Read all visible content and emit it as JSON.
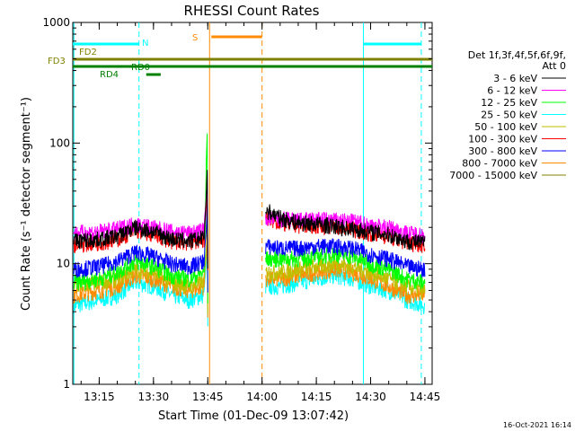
{
  "chart_data": {
    "type": "line",
    "title": "RHESSI Count Rates",
    "xlabel": "Start Time (01-Dec-09 13:07:42)",
    "ylabel": "Count Rate (s⁻¹ detector segment⁻¹)",
    "y_scale": "log",
    "ylim": [
      1,
      1000
    ],
    "xlim": [
      "13:07:42",
      "14:47:00"
    ],
    "x_ticks": [
      "13:15",
      "13:30",
      "13:45",
      "14:00",
      "14:15",
      "14:30",
      "14:45"
    ],
    "y_ticks": [
      "1",
      "10",
      "100",
      "1000"
    ],
    "timestamp": "16-Oct-2021 16:14",
    "legend": {
      "position": "right",
      "title_lines": [
        "Det 1f,3f,4f,5f,6f,9f,",
        "Att 0"
      ]
    },
    "series": [
      {
        "name": "3 - 6 keV",
        "color": "#000000",
        "values": [
          15.5,
          16,
          17,
          20,
          18.5,
          16,
          15.5,
          16.5,
          28,
          24,
          22,
          21.5,
          20.5,
          19.5,
          18.5,
          17.5,
          15.5,
          15
        ]
      },
      {
        "name": "6 - 12 keV",
        "color": "#ff00ff",
        "values": [
          18,
          18.5,
          19.5,
          21.5,
          20,
          18.5,
          18,
          19,
          24,
          23.5,
          23,
          23.5,
          23,
          22.5,
          21,
          20,
          18,
          17.5
        ]
      },
      {
        "name": "12 - 25 keV",
        "color": "#00ff00",
        "values": [
          7,
          7.5,
          8.5,
          10.5,
          9.5,
          8,
          7.5,
          8.5,
          11,
          11,
          11,
          11.5,
          12,
          11.5,
          10,
          9,
          7.5,
          7
        ]
      },
      {
        "name": "25 - 50 keV",
        "color": "#00ffff",
        "values": [
          4.5,
          5,
          5.5,
          7,
          6.5,
          5.5,
          5,
          5.5,
          6.5,
          6.5,
          7,
          7.5,
          8,
          7.5,
          6.5,
          6,
          5,
          4.5
        ]
      },
      {
        "name": "50 - 100 keV",
        "color": "#bfbf00",
        "values": [
          6.5,
          7,
          7.5,
          9,
          8.5,
          7,
          6.5,
          7,
          8.5,
          8.5,
          9,
          9.5,
          10,
          9.5,
          8.5,
          7.5,
          6.5,
          6
        ]
      },
      {
        "name": "100 - 300 keV",
        "color": "#ff0000",
        "values": [
          14.5,
          15,
          16,
          19,
          17.5,
          15.5,
          15,
          16,
          24,
          22,
          21,
          21,
          20.5,
          19.5,
          18,
          17,
          15,
          14.5
        ]
      },
      {
        "name": "300 - 800 keV",
        "color": "#0000ff",
        "values": [
          9,
          9.5,
          10.5,
          12.5,
          11.5,
          10,
          9.5,
          10.5,
          14,
          13.5,
          13.5,
          14,
          14,
          13.5,
          12,
          11,
          9.5,
          9
        ]
      },
      {
        "name": "800 - 7000 keV",
        "color": "#ff8c00",
        "values": [
          5.5,
          6,
          6.5,
          8,
          7.5,
          6.5,
          6,
          6.5,
          7.5,
          7.5,
          8,
          8.5,
          9,
          8.5,
          7.5,
          6.5,
          5.5,
          5.5
        ]
      },
      {
        "name": "7000 - 15000 keV",
        "color": "#808000",
        "values": []
      }
    ],
    "sample_times": [
      "13:08",
      "13:15",
      "13:20",
      "13:25",
      "13:30",
      "13:35",
      "13:40",
      "13:44",
      "14:01",
      "14:05",
      "14:10",
      "14:15",
      "14:20",
      "14:25",
      "14:30",
      "14:35",
      "14:40",
      "14:45"
    ],
    "spike": {
      "time": "13:45",
      "series_peaks": {
        "3 - 6 keV": 60,
        "12 - 25 keV": 120,
        "100 - 300 keV": 50
      }
    },
    "gaps": [
      {
        "from": "13:45",
        "to": "14:01"
      }
    ],
    "flag_bars": [
      {
        "label": "N",
        "color": "#00ffff",
        "segments": [
          [
            "13:07:42",
            "13:26"
          ],
          [
            "14:28",
            "14:44"
          ]
        ],
        "level": 600
      },
      {
        "label": "S",
        "color": "#ff8c00",
        "segments": [
          [
            "13:46",
            "14:00"
          ]
        ],
        "level": 780
      },
      {
        "label": "FD2",
        "color": "#808000",
        "segments": [
          [
            "13:07:42",
            "14:47"
          ]
        ],
        "level": 480
      },
      {
        "label": "FD3",
        "color": "#808000",
        "segments": [
          [
            "13:07:42",
            "14:47"
          ]
        ],
        "level": 480
      },
      {
        "label": "RD0",
        "color": "#008000",
        "segments": [
          [
            "13:07:42",
            "14:47"
          ]
        ],
        "level": 410
      },
      {
        "label": "RD4",
        "color": "#008000",
        "segments": [
          [
            "13:28",
            "13:32"
          ]
        ],
        "level": 345
      }
    ],
    "vertical_markers": [
      {
        "time": "13:08",
        "color": "#00ffff",
        "style": "solid"
      },
      {
        "time": "13:26",
        "color": "#00ffff",
        "style": "dashed"
      },
      {
        "time": "13:45:30",
        "color": "#ff8c00",
        "style": "solid"
      },
      {
        "time": "14:00",
        "color": "#ff8c00",
        "style": "dashed"
      },
      {
        "time": "14:28",
        "color": "#00ffff",
        "style": "solid"
      },
      {
        "time": "14:44",
        "color": "#00ffff",
        "style": "dashed"
      }
    ]
  }
}
